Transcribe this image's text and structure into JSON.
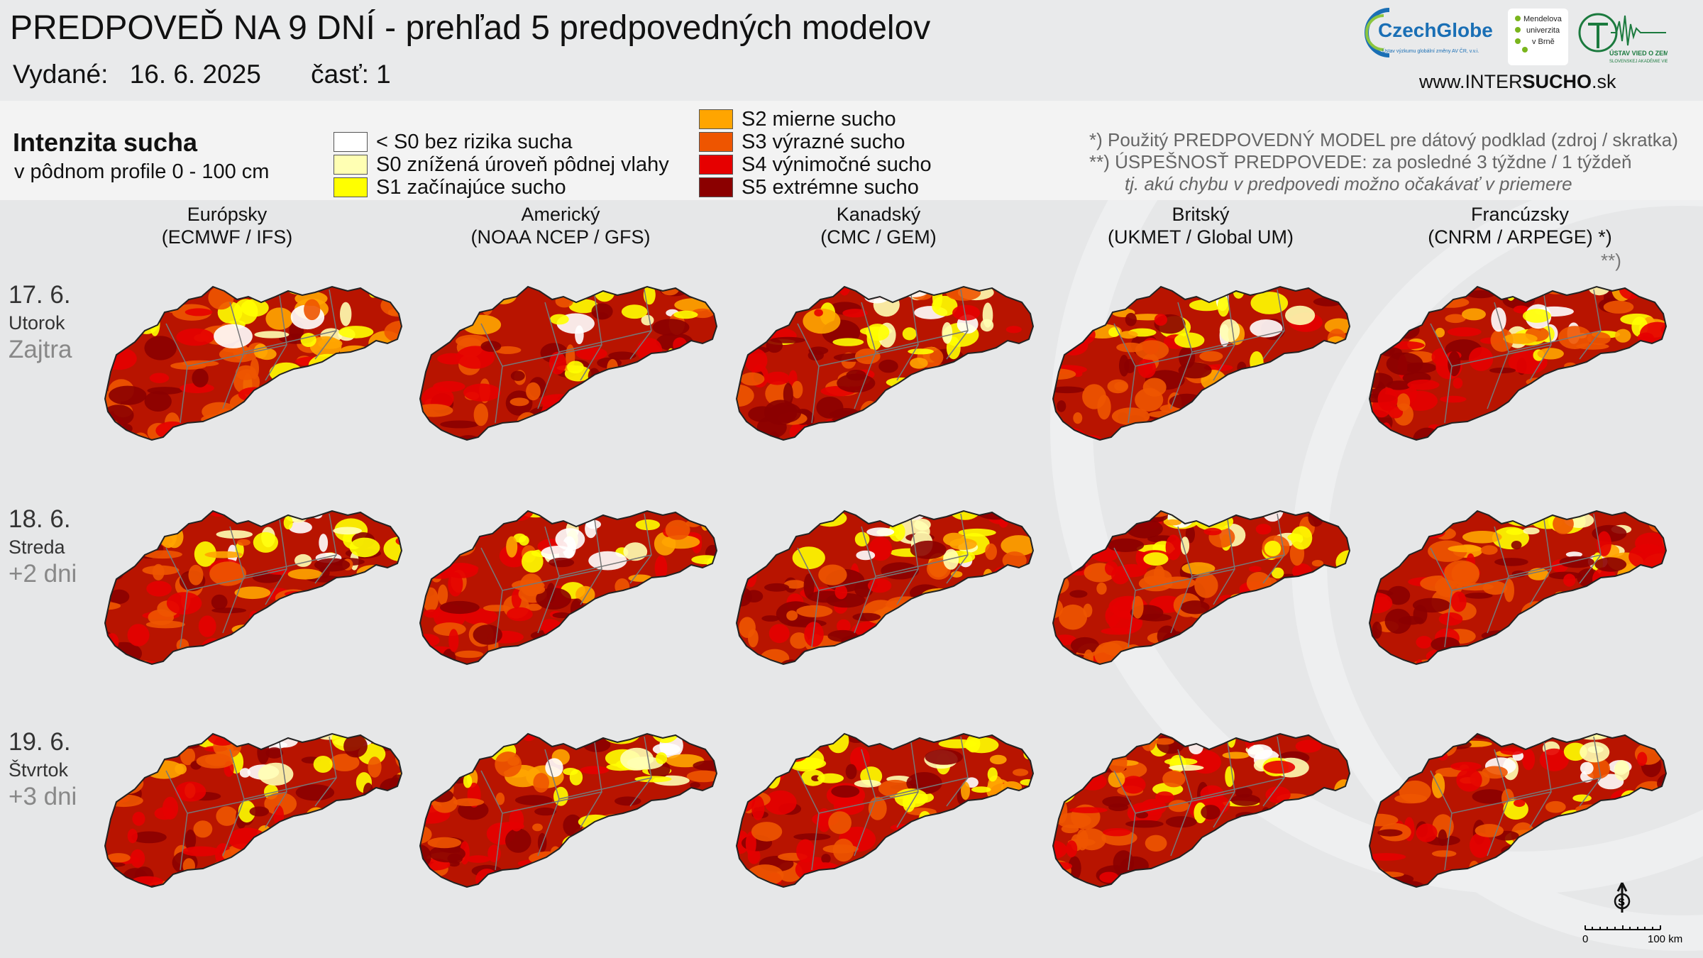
{
  "header": {
    "title": "PREDPOVEĎ NA 9 DNÍ - prehľad 5 predpovedných modelov",
    "issued_label": "Vydané:",
    "issued_date": "16. 6. 2025",
    "part": "časť: 1"
  },
  "logos": {
    "czechglobe": "CzechGlobe",
    "czechglobe_sub": "Ústav výzkumu globální změny AV ČR, v.v.i.",
    "mendel": [
      "Mendelova",
      "univerzita",
      "v Brně"
    ],
    "uvz": "ÚSTAV VIED O ZEMI",
    "uvz_sub": "SLOVENSKEJ AKADÉMIE VIED",
    "site_prefix": "www.INTER",
    "site_bold": "SUCHO",
    "site_suffix": ".sk"
  },
  "legend": {
    "title": "Intenzita sucha",
    "subtitle": "v pôdnom profile 0 - 100 cm",
    "items": [
      {
        "label": "< S0 bez rizika sucha",
        "color": "#ffffff"
      },
      {
        "label": "S0 znížená úroveň pôdnej vlahy",
        "color": "#ffffb3"
      },
      {
        "label": "S1 začínajúce sucho",
        "color": "#ffff00"
      },
      {
        "label": "S2 mierne sucho",
        "color": "#ffa500"
      },
      {
        "label": "S3 výrazné sucho",
        "color": "#ee5500"
      },
      {
        "label": "S4 výnimočné sucho",
        "color": "#e60000"
      },
      {
        "label": "S5 extrémne sucho",
        "color": "#8b0000"
      }
    ]
  },
  "notes": {
    "n1": "*)   Použitý PREDPOVEDNÝ MODEL pre dátový podklad (zdroj / skratka)",
    "n2": "**) ÚSPEŠNOSŤ PREDPOVEDE: za posledné 3 týždne / 1 týždeň",
    "n3": "tj. akú chybu v predpovedi možno očakávať v priemere"
  },
  "models": [
    {
      "name": "Európsky",
      "code": "(ECMWF / IFS)"
    },
    {
      "name": "Americký",
      "code": "(NOAA NCEP / GFS)"
    },
    {
      "name": "Kanadský",
      "code": "(CMC / GEM)"
    },
    {
      "name": "Britský",
      "code": "(UKMET / Global UM)"
    },
    {
      "name": "Francúzsky",
      "code": "(CNRM / ARPEGE) *)"
    }
  ],
  "stars_note": "**)",
  "rows": [
    {
      "date": "17. 6.",
      "weekday": "Utorok",
      "rel": "Zajtra"
    },
    {
      "date": "18. 6.",
      "weekday": "Streda",
      "rel": "+2 dni"
    },
    {
      "date": "19. 6.",
      "weekday": "Štvrtok",
      "rel": "+3 dni"
    }
  ],
  "scale": {
    "start": "0",
    "end": "100 km"
  }
}
